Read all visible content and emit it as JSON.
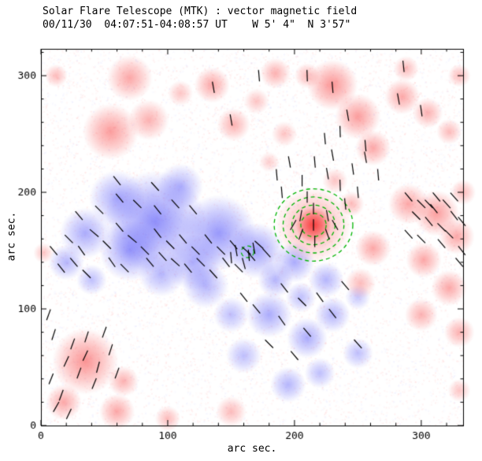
{
  "chart_data": {
    "type": "heatmap",
    "title": "Solar Flare Telescope (MTK) : vector magnetic field",
    "subtitle": "00/11/30  04:07:51-04:08:57 UT    W 5' 4\"  N 3'57\"",
    "xlabel": "arc sec.",
    "ylabel": "arc sec.",
    "xlim": [
      0,
      333
    ],
    "ylim": [
      0,
      323
    ],
    "x_ticks": [
      0,
      100,
      200,
      300
    ],
    "y_ticks": [
      0,
      100,
      200,
      300
    ],
    "minor_tick_step": 20,
    "grid": false,
    "legend": "none",
    "colors": {
      "positive_polarity": "#f84c4c",
      "negative_polarity": "#5050f0",
      "contour": "#00b400",
      "vector": "#000000",
      "axis": "#000000",
      "background": "#ffffff"
    },
    "positive_blobs": [
      [
        70,
        298,
        18,
        0.45
      ],
      [
        55,
        252,
        22,
        0.5
      ],
      [
        85,
        262,
        16,
        0.4
      ],
      [
        12,
        300,
        9,
        0.35
      ],
      [
        135,
        292,
        14,
        0.45
      ],
      [
        152,
        258,
        13,
        0.4
      ],
      [
        185,
        302,
        12,
        0.4
      ],
      [
        230,
        292,
        20,
        0.55
      ],
      [
        250,
        265,
        18,
        0.5
      ],
      [
        262,
        238,
        14,
        0.45
      ],
      [
        285,
        282,
        14,
        0.45
      ],
      [
        305,
        268,
        12,
        0.4
      ],
      [
        322,
        252,
        10,
        0.35
      ],
      [
        330,
        300,
        9,
        0.35
      ],
      [
        215,
        172,
        14,
        0.95
      ],
      [
        215,
        172,
        30,
        0.45
      ],
      [
        290,
        190,
        16,
        0.45
      ],
      [
        312,
        182,
        18,
        0.5
      ],
      [
        328,
        162,
        14,
        0.45
      ],
      [
        302,
        142,
        14,
        0.45
      ],
      [
        322,
        118,
        14,
        0.45
      ],
      [
        300,
        95,
        13,
        0.4
      ],
      [
        330,
        80,
        12,
        0.4
      ],
      [
        262,
        152,
        14,
        0.45
      ],
      [
        252,
        122,
        12,
        0.35
      ],
      [
        35,
        55,
        26,
        0.55
      ],
      [
        18,
        20,
        14,
        0.45
      ],
      [
        60,
        12,
        14,
        0.45
      ],
      [
        100,
        6,
        10,
        0.35
      ],
      [
        65,
        38,
        12,
        0.4
      ],
      [
        150,
        12,
        12,
        0.35
      ],
      [
        330,
        30,
        9,
        0.3
      ],
      [
        2,
        148,
        8,
        0.3
      ],
      [
        192,
        250,
        10,
        0.3
      ],
      [
        210,
        300,
        10,
        0.35
      ],
      [
        288,
        306,
        10,
        0.35
      ],
      [
        180,
        226,
        8,
        0.25
      ],
      [
        232,
        210,
        10,
        0.3
      ],
      [
        245,
        190,
        10,
        0.35
      ],
      [
        333,
        200,
        10,
        0.35
      ],
      [
        170,
        278,
        10,
        0.3
      ],
      [
        110,
        285,
        10,
        0.3
      ]
    ],
    "negative_blobs": [
      [
        90,
        175,
        40,
        0.6
      ],
      [
        140,
        165,
        30,
        0.55
      ],
      [
        60,
        195,
        22,
        0.45
      ],
      [
        110,
        205,
        18,
        0.4
      ],
      [
        170,
        150,
        22,
        0.5
      ],
      [
        200,
        140,
        16,
        0.45
      ],
      [
        225,
        125,
        14,
        0.4
      ],
      [
        130,
        120,
        18,
        0.4
      ],
      [
        180,
        95,
        18,
        0.45
      ],
      [
        210,
        75,
        16,
        0.45
      ],
      [
        230,
        95,
        14,
        0.4
      ],
      [
        250,
        62,
        12,
        0.35
      ],
      [
        160,
        60,
        14,
        0.35
      ],
      [
        195,
        35,
        14,
        0.4
      ],
      [
        220,
        45,
        12,
        0.35
      ],
      [
        20,
        140,
        14,
        0.4
      ],
      [
        40,
        125,
        12,
        0.35
      ],
      [
        250,
        110,
        10,
        0.3
      ],
      [
        150,
        95,
        14,
        0.35
      ],
      [
        120,
        140,
        22,
        0.45
      ],
      [
        35,
        165,
        20,
        0.45
      ],
      [
        70,
        150,
        24,
        0.5
      ],
      [
        95,
        130,
        18,
        0.4
      ],
      [
        185,
        125,
        14,
        0.4
      ],
      [
        205,
        110,
        12,
        0.35
      ]
    ],
    "contours": [
      {
        "center": [
          215,
          172
        ],
        "radii": [
          10,
          17,
          24,
          31
        ]
      },
      {
        "center": [
          163,
          149
        ],
        "radii": [
          5
        ]
      }
    ],
    "vectors": {
      "length_arcsec": 9,
      "segments": [
        [
          10,
          150,
          130
        ],
        [
          22,
          160,
          135
        ],
        [
          32,
          150,
          125
        ],
        [
          42,
          165,
          140
        ],
        [
          26,
          140,
          130
        ],
        [
          52,
          155,
          135
        ],
        [
          62,
          170,
          130
        ],
        [
          72,
          160,
          140
        ],
        [
          82,
          150,
          135
        ],
        [
          92,
          165,
          128
        ],
        [
          102,
          155,
          135
        ],
        [
          112,
          160,
          130
        ],
        [
          56,
          140,
          125
        ],
        [
          66,
          135,
          135
        ],
        [
          86,
          140,
          130
        ],
        [
          122,
          150,
          135
        ],
        [
          132,
          160,
          128
        ],
        [
          142,
          150,
          135
        ],
        [
          152,
          155,
          130
        ],
        [
          162,
          150,
          140
        ],
        [
          36,
          130,
          135
        ],
        [
          16,
          135,
          128
        ],
        [
          96,
          145,
          132
        ],
        [
          106,
          140,
          138
        ],
        [
          116,
          135,
          130
        ],
        [
          126,
          140,
          135
        ],
        [
          136,
          130,
          132
        ],
        [
          146,
          140,
          128
        ],
        [
          156,
          135,
          135
        ],
        [
          166,
          145,
          130
        ],
        [
          172,
          155,
          138
        ],
        [
          178,
          148,
          132
        ],
        [
          62,
          195,
          130
        ],
        [
          76,
          190,
          135
        ],
        [
          92,
          185,
          128
        ],
        [
          106,
          190,
          132
        ],
        [
          120,
          185,
          130
        ],
        [
          46,
          185,
          135
        ],
        [
          30,
          180,
          130
        ],
        [
          90,
          205,
          132
        ],
        [
          60,
          210,
          128
        ],
        [
          25,
          70,
          70
        ],
        [
          35,
          60,
          65
        ],
        [
          45,
          50,
          75
        ],
        [
          30,
          45,
          70
        ],
        [
          42,
          36,
          68
        ],
        [
          55,
          65,
          72
        ],
        [
          50,
          80,
          70
        ],
        [
          20,
          55,
          65
        ],
        [
          60,
          45,
          70
        ],
        [
          36,
          76,
          72
        ],
        [
          12,
          16,
          60
        ],
        [
          22,
          10,
          65
        ],
        [
          16,
          26,
          70
        ],
        [
          8,
          40,
          68
        ],
        [
          10,
          78,
          72
        ],
        [
          6,
          95,
          70
        ],
        [
          186,
          215,
          95
        ],
        [
          196,
          226,
          100
        ],
        [
          206,
          210,
          90
        ],
        [
          216,
          226,
          95
        ],
        [
          226,
          216,
          100
        ],
        [
          236,
          206,
          92
        ],
        [
          246,
          220,
          98
        ],
        [
          190,
          200,
          95
        ],
        [
          230,
          232,
          100
        ],
        [
          250,
          200,
          95
        ],
        [
          210,
          196,
          90
        ],
        [
          240,
          190,
          96
        ],
        [
          256,
          230,
          100
        ],
        [
          266,
          215,
          95
        ],
        [
          224,
          246,
          95
        ],
        [
          236,
          252,
          92
        ],
        [
          205,
          180,
          80
        ],
        [
          215,
          186,
          90
        ],
        [
          226,
          180,
          100
        ],
        [
          205,
          164,
          70
        ],
        [
          226,
          164,
          110
        ],
        [
          216,
          158,
          90
        ],
        [
          199,
          172,
          60
        ],
        [
          232,
          172,
          120
        ],
        [
          215,
          172,
          90
        ],
        [
          290,
          196,
          130
        ],
        [
          300,
          190,
          135
        ],
        [
          310,
          186,
          128
        ],
        [
          320,
          190,
          132
        ],
        [
          296,
          180,
          135
        ],
        [
          306,
          175,
          130
        ],
        [
          316,
          170,
          135
        ],
        [
          326,
          180,
          128
        ],
        [
          290,
          164,
          132
        ],
        [
          300,
          160,
          135
        ],
        [
          312,
          196,
          130
        ],
        [
          322,
          164,
          135
        ],
        [
          326,
          196,
          132
        ],
        [
          332,
          175,
          130
        ],
        [
          306,
          190,
          134
        ],
        [
          316,
          156,
          130
        ],
        [
          154,
          150,
          100
        ],
        [
          164,
          146,
          95
        ],
        [
          160,
          139,
          105
        ],
        [
          150,
          144,
          95
        ],
        [
          168,
          152,
          100
        ],
        [
          170,
          100,
          130
        ],
        [
          190,
          90,
          125
        ],
        [
          210,
          80,
          130
        ],
        [
          230,
          96,
          128
        ],
        [
          250,
          70,
          132
        ],
        [
          160,
          110,
          128
        ],
        [
          180,
          70,
          135
        ],
        [
          200,
          60,
          130
        ],
        [
          220,
          110,
          126
        ],
        [
          240,
          120,
          130
        ],
        [
          206,
          106,
          135
        ],
        [
          192,
          118,
          128
        ],
        [
          150,
          262,
          100
        ],
        [
          230,
          290,
          95
        ],
        [
          242,
          266,
          100
        ],
        [
          256,
          240,
          95
        ],
        [
          282,
          280,
          100
        ],
        [
          300,
          270,
          98
        ],
        [
          172,
          300,
          95
        ],
        [
          136,
          290,
          100
        ],
        [
          210,
          300,
          92
        ],
        [
          286,
          308,
          96
        ],
        [
          330,
          140,
          130
        ],
        [
          332,
          150,
          128
        ]
      ]
    }
  }
}
